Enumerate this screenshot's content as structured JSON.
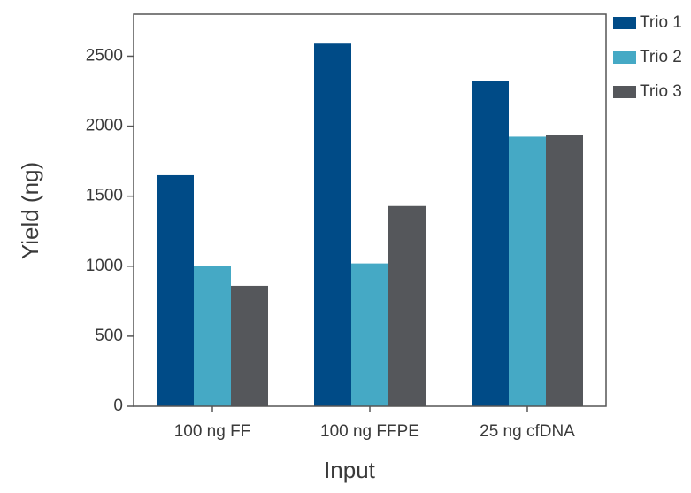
{
  "chart_data": {
    "type": "bar",
    "title": "",
    "xlabel": "Input",
    "ylabel": "Yield (ng)",
    "categories": [
      "100 ng FF",
      "100 ng FFPE",
      "25 ng cfDNA"
    ],
    "series": [
      {
        "name": "Trio 1",
        "color": "#004B87",
        "values": [
          1650,
          2590,
          2320
        ]
      },
      {
        "name": "Trio 2",
        "color": "#45A9C5",
        "values": [
          1000,
          1020,
          1925
        ]
      },
      {
        "name": "Trio 3",
        "color": "#55575B",
        "values": [
          860,
          1430,
          1935
        ]
      }
    ],
    "ylim": [
      0,
      2800
    ],
    "yticks": [
      0,
      500,
      1000,
      1500,
      2000,
      2500
    ],
    "grid": false,
    "legend_position": "top-right, outside plot"
  }
}
